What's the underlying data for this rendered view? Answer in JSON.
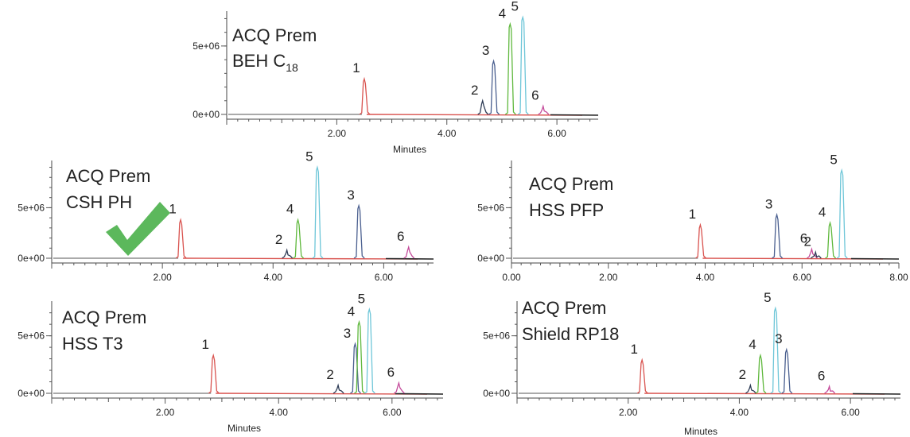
{
  "figure": {
    "checkmark_color": "#5cb85c",
    "peak_colors": {
      "1": "#d9534f",
      "2": "#2d3b55",
      "3": "#4a5f8f",
      "4": "#5fb83d",
      "5": "#6ec6d8",
      "6": "#c44a9a"
    },
    "baseline_color": "#d9534f"
  },
  "chart_data": [
    {
      "type": "line",
      "title_line1": "ACQ Prem",
      "title_line2": "BEH C",
      "title_subscript": "18",
      "xlabel": "Minutes",
      "xlim": [
        0,
        6.75
      ],
      "ylim": [
        0,
        7200000
      ],
      "x_ticks": [
        2,
        4,
        6
      ],
      "x_tick_labels": [
        "2.00",
        "4.00",
        "6.00"
      ],
      "y_ticks": [
        0,
        5000000
      ],
      "y_tick_labels": [
        "0e+00",
        "5e+06"
      ],
      "peaks": [
        {
          "label": "1",
          "rt": 2.5,
          "height": 2600000
        },
        {
          "label": "2",
          "rt": 4.65,
          "height": 1000000
        },
        {
          "label": "3",
          "rt": 4.85,
          "height": 3900000
        },
        {
          "label": "4",
          "rt": 5.15,
          "height": 6600000
        },
        {
          "label": "5",
          "rt": 5.38,
          "height": 7100000
        },
        {
          "label": "6",
          "rt": 5.75,
          "height": 600000
        }
      ]
    },
    {
      "type": "line",
      "title_line1": "ACQ Prem",
      "title_line2": "CSH PH",
      "title_subscript": "",
      "xlabel": "",
      "xlim": [
        0,
        6.9
      ],
      "ylim": [
        0,
        9200000
      ],
      "x_ticks": [
        2,
        4,
        6
      ],
      "x_tick_labels": [
        "2.00",
        "4.00",
        "6.00"
      ],
      "y_ticks": [
        0,
        5000000
      ],
      "y_tick_labels": [
        "0e+00",
        "5e+06"
      ],
      "peaks": [
        {
          "label": "1",
          "rt": 2.33,
          "height": 3800000
        },
        {
          "label": "2",
          "rt": 4.25,
          "height": 800000
        },
        {
          "label": "4",
          "rt": 4.45,
          "height": 3800000
        },
        {
          "label": "5",
          "rt": 4.8,
          "height": 9000000
        },
        {
          "label": "3",
          "rt": 5.55,
          "height": 5200000
        },
        {
          "label": "6",
          "rt": 6.45,
          "height": 1100000
        }
      ]
    },
    {
      "type": "line",
      "title_line1": "ACQ Prem",
      "title_line2": "HSS PFP",
      "title_subscript": "",
      "xlabel": "",
      "xlim": [
        0,
        8.0
      ],
      "ylim": [
        0,
        9200000
      ],
      "x_ticks": [
        0,
        2,
        4,
        6,
        8
      ],
      "x_tick_labels": [
        "0.00",
        "2.00",
        "4.00",
        "6.00",
        "8.00"
      ],
      "y_ticks": [
        0,
        5000000
      ],
      "y_tick_labels": [
        "0e+00",
        "5e+06"
      ],
      "peaks": [
        {
          "label": "1",
          "rt": 3.9,
          "height": 3300000
        },
        {
          "label": "3",
          "rt": 5.48,
          "height": 4300000
        },
        {
          "label": "6",
          "rt": 6.2,
          "height": 900000
        },
        {
          "label": "2",
          "rt": 6.28,
          "height": 600000
        },
        {
          "label": "4",
          "rt": 6.58,
          "height": 3500000
        },
        {
          "label": "5",
          "rt": 6.82,
          "height": 8700000
        }
      ]
    },
    {
      "type": "line",
      "title_line1": "ACQ Prem",
      "title_line2": "HSS T3",
      "title_subscript": "",
      "xlabel": "Minutes",
      "xlim": [
        0,
        6.9
      ],
      "ylim": [
        0,
        7600000
      ],
      "x_ticks": [
        2,
        4,
        6
      ],
      "x_tick_labels": [
        "2.00",
        "4.00",
        "6.00"
      ],
      "y_ticks": [
        0,
        5000000
      ],
      "y_tick_labels": [
        "0e+00",
        "5e+06"
      ],
      "peaks": [
        {
          "label": "1",
          "rt": 2.85,
          "height": 3300000
        },
        {
          "label": "2",
          "rt": 5.05,
          "height": 700000
        },
        {
          "label": "3",
          "rt": 5.35,
          "height": 4300000
        },
        {
          "label": "4",
          "rt": 5.42,
          "height": 6200000
        },
        {
          "label": "5",
          "rt": 5.6,
          "height": 7300000
        },
        {
          "label": "6",
          "rt": 6.12,
          "height": 900000
        }
      ]
    },
    {
      "type": "line",
      "title_line1": "ACQ Prem",
      "title_line2": "Shield RP18",
      "title_subscript": "",
      "xlabel": "Minutes",
      "xlim": [
        0,
        6.9
      ],
      "ylim": [
        0,
        7600000
      ],
      "x_ticks": [
        2,
        4,
        6
      ],
      "x_tick_labels": [
        "2.00",
        "4.00",
        "6.00"
      ],
      "y_ticks": [
        0,
        5000000
      ],
      "y_tick_labels": [
        "0e+00",
        "5e+06"
      ],
      "peaks": [
        {
          "label": "1",
          "rt": 2.25,
          "height": 2900000
        },
        {
          "label": "2",
          "rt": 4.2,
          "height": 700000
        },
        {
          "label": "4",
          "rt": 4.38,
          "height": 3300000
        },
        {
          "label": "5",
          "rt": 4.65,
          "height": 7400000
        },
        {
          "label": "3",
          "rt": 4.85,
          "height": 3800000
        },
        {
          "label": "6",
          "rt": 5.62,
          "height": 600000
        }
      ]
    }
  ]
}
